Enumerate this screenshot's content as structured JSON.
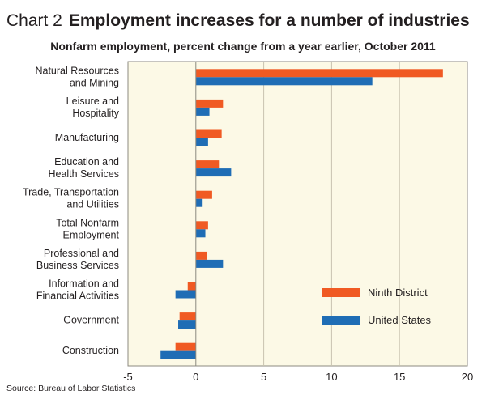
{
  "header": {
    "chart_number": "Chart 2",
    "title": "Employment increases for a number of industries",
    "subtitle": "Nonfarm employment, percent change from a year earlier, October 2011"
  },
  "source": "Source: Bureau of Labor Statistics",
  "colors": {
    "plot_background": "#fcf9e6",
    "ninth_district": "#f05a23",
    "united_states": "#1f6db5",
    "grid": "#c8c3b0"
  },
  "chart_data": {
    "type": "bar",
    "orientation": "horizontal",
    "title": "Employment increases for a number of industries",
    "subtitle": "Nonfarm employment, percent change from a year earlier, October 2011",
    "categories": [
      [
        "Natural Resources",
        "and Mining"
      ],
      [
        "Leisure and",
        "Hospitality"
      ],
      [
        "Manufacturing"
      ],
      [
        "Education and",
        "Health Services"
      ],
      [
        "Trade, Transportation",
        "and Utilities"
      ],
      [
        "Total Nonfarm",
        "Employment"
      ],
      [
        "Professional and",
        "Business Services"
      ],
      [
        "Information and",
        "Financial Activities"
      ],
      [
        "Government"
      ],
      [
        "Construction"
      ]
    ],
    "series": [
      {
        "name": "Ninth District",
        "color": "#f05a23",
        "values": [
          18.2,
          2.0,
          1.9,
          1.7,
          1.2,
          0.9,
          0.8,
          -0.6,
          -1.2,
          -1.5
        ]
      },
      {
        "name": "United States",
        "color": "#1f6db5",
        "values": [
          13.0,
          1.0,
          0.9,
          2.6,
          0.5,
          0.7,
          2.0,
          -1.5,
          -1.3,
          -2.6
        ]
      }
    ],
    "xlim": [
      -5,
      20
    ],
    "xticks": [
      -5,
      0,
      5,
      10,
      15,
      20
    ],
    "xtick_labels": [
      "-5",
      "0",
      "5",
      "10",
      "15",
      "20"
    ],
    "grid": "vertical",
    "legend": "right"
  }
}
